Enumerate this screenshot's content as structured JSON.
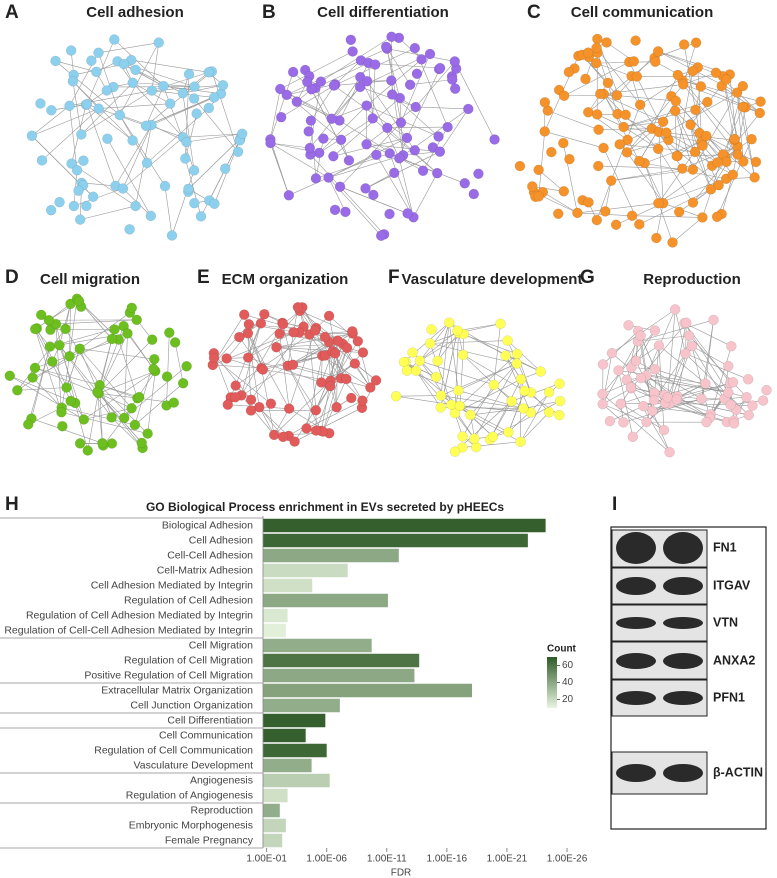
{
  "panels": [
    {
      "letter": "A",
      "title": "Cell adhesion"
    },
    {
      "letter": "B",
      "title": "Cell differentiation"
    },
    {
      "letter": "C",
      "title": "Cell communication"
    },
    {
      "letter": "D",
      "title": "Cell migration"
    },
    {
      "letter": "E",
      "title": "ECM organization"
    },
    {
      "letter": "F",
      "title": "Vasculature development"
    },
    {
      "letter": "G",
      "title": "Reproduction"
    }
  ],
  "chart_data": {
    "type": "bar",
    "orientation": "horizontal",
    "letter": "H",
    "title": "GO Biological Process enrichment in EVs secreted by pHEECs",
    "xlabel": "FDR",
    "log_x": true,
    "categories": [
      "Biological Adhesion",
      "Cell Adhesion",
      "Cell-Cell Adhesion",
      "Cell-Matrix Adhesion",
      "Cell Adhesion Mediated by Integrin",
      "Regulation of Cell Adhesion",
      "Regulation of Cell Adhesion Mediated by Integrin",
      "Regulation of Cell-Cell Adhesion Mediated by Integrin",
      "Cell Migration",
      "Regulation of Cell Migration",
      "Positive Regulation of Cell Migration",
      "Extracellular Matrix Organization",
      "Cell Junction Organization",
      "Cell Differentiation",
      "Cell Communication",
      "Regulation of Cell Communication",
      "Vasculature Development",
      "Angiogenesis",
      "Regulation of Angiogenesis",
      "Reproduction",
      "Embryonic Morphogenesis",
      "Female Pregnancy"
    ],
    "values": [
      6e-25,
      1.8e-23,
      1e-12,
      1.8e-08,
      1.6e-05,
      8e-12,
      0.0018,
      0.0025,
      1.8e-10,
      2e-14,
      5e-14,
      8e-19,
      8e-08,
      1.3e-06,
      5.6e-05,
      1e-06,
      1.8e-05,
      5.6e-07,
      0.0018,
      0.008,
      0.0025,
      0.005
    ],
    "counts": [
      68,
      65,
      40,
      20,
      18,
      40,
      15,
      12,
      38,
      60,
      40,
      42,
      38,
      68,
      68,
      65,
      38,
      25,
      18,
      38,
      22,
      22
    ],
    "xlim": [
      0.2,
      1e-27
    ],
    "xticks": [
      {
        "value": 0.1,
        "label": "1.00E-01"
      },
      {
        "value": 1e-06,
        "label": "1.00E-06"
      },
      {
        "value": 1e-11,
        "label": "1.00E-11"
      },
      {
        "value": 1e-16,
        "label": "1.00E-16"
      },
      {
        "value": 1e-21,
        "label": "1.00E-21"
      },
      {
        "value": 1e-26,
        "label": "1.00E-26"
      }
    ],
    "colorbar": {
      "title": "Count",
      "lim": [
        10,
        70
      ],
      "ticks": [
        20,
        40,
        60
      ],
      "colors": [
        "#e8f5e0",
        "#2f5a27"
      ]
    }
  },
  "blot": {
    "letter": "I",
    "proteins": [
      "FN1",
      "ITGAV",
      "VTN",
      "ANXA2",
      "PFN1",
      "β-ACTIN"
    ]
  }
}
